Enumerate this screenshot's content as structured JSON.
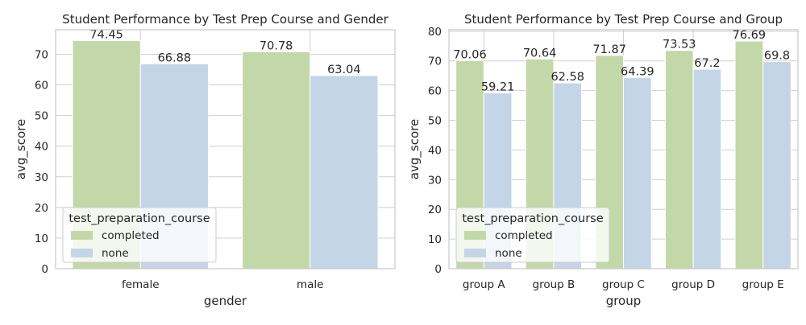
{
  "colors": {
    "completed": "#c3d8a8",
    "none": "#c4d5e8",
    "grid": "#cfcfcf",
    "frame": "#c8c8c8",
    "legend_bg": "#ffffff",
    "legend_border": "#cccccc"
  },
  "chart_data": [
    {
      "type": "bar",
      "title": "Student Performance by Test Prep Course and Gender",
      "xlabel": "gender",
      "ylabel": "avg_score",
      "categories": [
        "female",
        "male"
      ],
      "series": [
        {
          "name": "completed",
          "values": [
            74.45,
            70.78
          ],
          "labels": [
            "74.45",
            "70.78"
          ]
        },
        {
          "name": "none",
          "values": [
            66.88,
            63.04
          ],
          "labels": [
            "66.88",
            "63.04"
          ]
        }
      ],
      "ylim": [
        0,
        78
      ],
      "yticks": [
        0,
        10,
        20,
        30,
        40,
        50,
        60,
        70
      ],
      "grid": true,
      "legend": {
        "title": "test_preparation_course",
        "placement": "lower-left"
      }
    },
    {
      "type": "bar",
      "title": "Student Performance by Test Prep Course and Group",
      "xlabel": "group",
      "ylabel": "avg_score",
      "categories": [
        "group A",
        "group B",
        "group C",
        "group D",
        "group E"
      ],
      "series": [
        {
          "name": "completed",
          "values": [
            70.06,
            70.64,
            71.87,
            73.53,
            76.69
          ],
          "labels": [
            "70.06",
            "70.64",
            "71.87",
            "73.53",
            "76.69"
          ]
        },
        {
          "name": "none",
          "values": [
            59.21,
            62.58,
            64.39,
            67.2,
            69.8
          ],
          "labels": [
            "59.21",
            "62.58",
            "64.39",
            "67.2",
            "69.8"
          ]
        }
      ],
      "ylim": [
        0,
        80.5
      ],
      "yticks": [
        0,
        10,
        20,
        30,
        40,
        50,
        60,
        70,
        80
      ],
      "grid": true,
      "legend": {
        "title": "test_preparation_course",
        "placement": "lower-left"
      }
    }
  ]
}
